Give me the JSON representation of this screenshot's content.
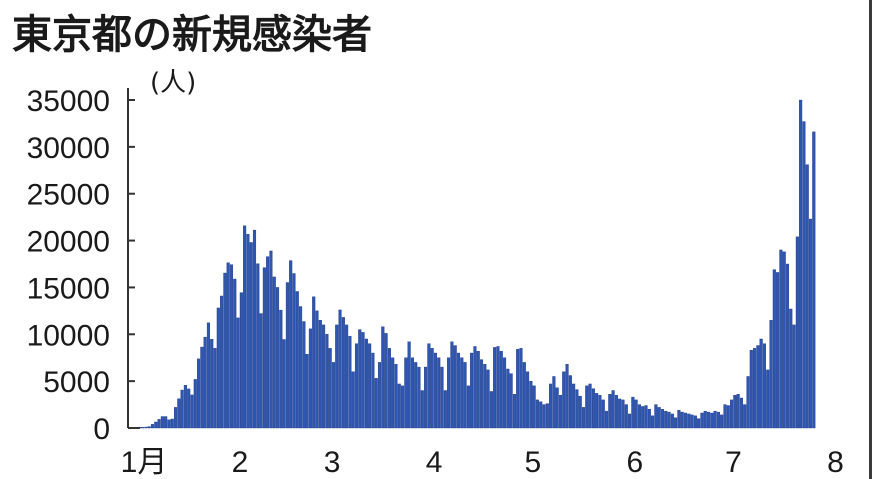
{
  "chart_data": {
    "type": "bar",
    "title": "東京都の新規感染者",
    "ylabel": "(人)",
    "xlabel": "",
    "ylim": [
      0,
      35000
    ],
    "y_ticks": [
      "0",
      "5000",
      "10000",
      "15000",
      "20000",
      "25000",
      "30000",
      "35000"
    ],
    "x_tick_labels": [
      "1月",
      "2",
      "3",
      "4",
      "5",
      "6",
      "7",
      "8"
    ],
    "grid": false,
    "bar_color": "#2f56b0",
    "months": [
      {
        "month": 1,
        "values": [
          79,
          84,
          103,
          151,
          390,
          641,
          922,
          1224,
          1223,
          871,
          962,
          2198,
          3124,
          4051,
          4561,
          4172,
          3527,
          5185,
          7377,
          8638,
          9699,
          11227,
          9468,
          8503,
          12813,
          14086,
          16538,
          17631,
          17433,
          15895,
          11751
        ]
      },
      {
        "month": 2,
        "values": [
          14445,
          21576,
          20679,
          19798,
          21120,
          17526,
          12213,
          17113,
          18287,
          18891,
          16121,
          15000,
          12582,
          9442,
          15525,
          17864,
          16485,
          14568,
          12963,
          11364,
          7869,
          10582,
          14000,
          12500,
          11500,
          11000,
          10000,
          8500
        ]
      },
      {
        "month": 3,
        "values": [
          7000,
          11000,
          12600,
          11800,
          11000,
          9800,
          6000,
          9000,
          10500,
          10200,
          9500,
          9000,
          8000,
          5300,
          7000,
          10800,
          10100,
          8500,
          7500,
          6800,
          4700,
          4500,
          7500,
          9200,
          7500,
          7000,
          6500,
          4000,
          6500,
          9000,
          8500
        ]
      },
      {
        "month": 4,
        "values": [
          8000,
          7500,
          6500,
          4000,
          7500,
          9200,
          8800,
          8000,
          7500,
          7000,
          4500,
          8000,
          8700,
          8200,
          7300,
          6800,
          6200,
          3900,
          8600,
          8700,
          8200,
          7500,
          6300,
          5800,
          3600,
          8400,
          8500,
          7000,
          6000,
          5000
        ]
      },
      {
        "month": 5,
        "values": [
          4500,
          3000,
          2800,
          2500,
          2600,
          4700,
          5500,
          4300,
          3500,
          6000,
          6800,
          5600,
          4700,
          4100,
          3400,
          2200,
          4500,
          4700,
          4200,
          3700,
          3500,
          3000,
          1800,
          3600,
          4000,
          3500,
          3100,
          3000,
          2500,
          1500,
          3300
        ]
      },
      {
        "month": 6,
        "values": [
          3000,
          2500,
          2300,
          2400,
          2000,
          1300,
          2500,
          2200,
          2000,
          1800,
          1700,
          1500,
          1100,
          1900,
          1700,
          1600,
          1500,
          1400,
          1300,
          1000,
          1600,
          1800,
          1700,
          1600,
          1800,
          1700,
          1400,
          2500,
          2400,
          3000
        ]
      },
      {
        "month": 7,
        "values": [
          3500,
          3600,
          3200,
          2500,
          5500,
          8300,
          8500,
          8800,
          9500,
          9000,
          6200,
          11500,
          16900,
          16600,
          19000,
          18800,
          17500,
          12700,
          11000,
          20400,
          34995,
          32700,
          28100,
          22300,
          31600
        ]
      }
    ]
  }
}
